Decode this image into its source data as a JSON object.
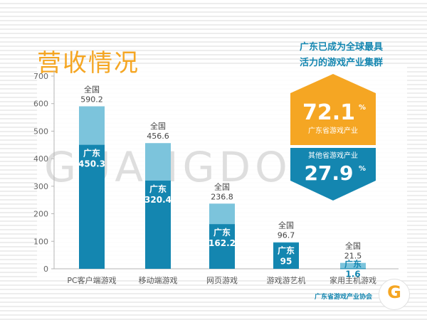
{
  "title": "营收情况",
  "watermark": "GUANGDONG",
  "callout": {
    "line1": "广东已成为全球最具",
    "line2": "活力的游戏产业集群",
    "gd_pct": "72.1",
    "gd_label": "广东省游戏产业",
    "other_label": "其他省游戏产业",
    "other_pct": "27.9",
    "pct_sign": "%"
  },
  "footer": "广东省游戏产业协会",
  "colors": {
    "title": "#f5a623",
    "national_bar": "#7cc4dc",
    "guangdong_bar": "#1486b0",
    "callout_orange": "#f5a623",
    "callout_blue": "#1486b0"
  },
  "chart_data": {
    "type": "bar",
    "categories": [
      "PC客户端游戏",
      "移动端游戏",
      "网页游戏",
      "游戏游艺机",
      "家用主机游戏"
    ],
    "series": [
      {
        "name": "全国",
        "values": [
          590.2,
          456.6,
          236.8,
          96.7,
          21.5
        ]
      },
      {
        "name": "广东",
        "values": [
          450.3,
          320.4,
          162.2,
          95,
          1.6
        ]
      }
    ],
    "value_labels": {
      "national": [
        "590.2",
        "456.6",
        "236.8",
        "96.7",
        "21.5"
      ],
      "guangdong": [
        "450.3",
        "320.4",
        "162.2",
        "95",
        "1.6"
      ]
    },
    "yticks": [
      "0",
      "100",
      "200",
      "300",
      "400",
      "500",
      "600",
      "700"
    ],
    "ylim": [
      0,
      700
    ],
    "overlay": true,
    "grid": false
  }
}
